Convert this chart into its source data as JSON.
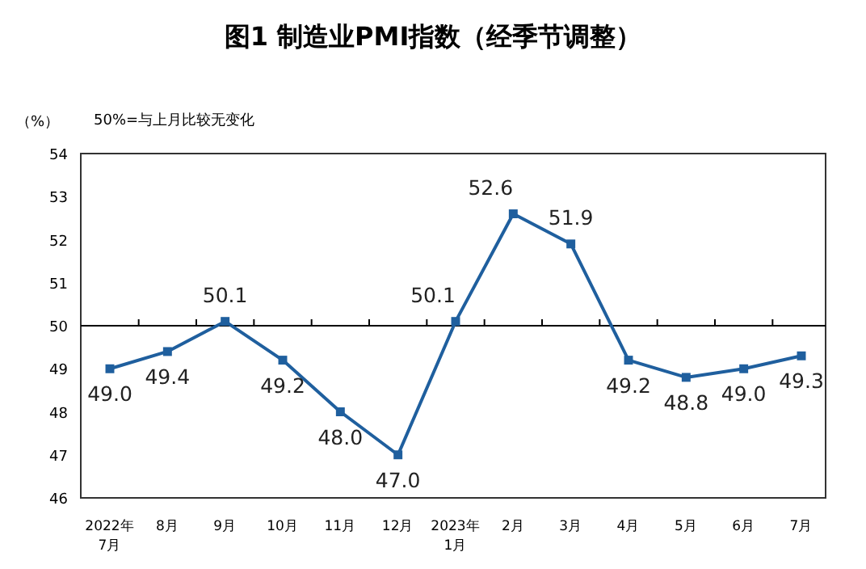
{
  "chart_data": {
    "type": "line",
    "title": "图1 制造业PMI指数（经季节调整）",
    "ylabel": "（%）",
    "annotations": [
      "50%=与上月比较无变化"
    ],
    "categories": [
      "2022年\n7月",
      "8月",
      "9月",
      "10月",
      "11月",
      "12月",
      "2023年\n1月",
      "2月",
      "3月",
      "4月",
      "5月",
      "6月",
      "7月"
    ],
    "series": [
      {
        "color": "#1f5f9e",
        "values": [
          49.0,
          49.4,
          50.1,
          49.2,
          48.0,
          47.0,
          50.1,
          52.6,
          51.9,
          49.2,
          48.8,
          49.0,
          49.3
        ],
        "value_labels": [
          "49.0",
          "49.4",
          "50.1",
          "49.2",
          "48.0",
          "47.0",
          "50.1",
          "52.6",
          "51.9",
          "49.2",
          "48.8",
          "49.0",
          "49.3"
        ]
      }
    ],
    "ylim": [
      46,
      54
    ],
    "yticks": [
      46,
      47,
      48,
      49,
      50,
      51,
      52,
      53,
      54
    ],
    "ref_lines": [
      {
        "axis": "y",
        "value": 50,
        "color": "#000000"
      }
    ],
    "marker": "square",
    "line_style": "solid"
  }
}
